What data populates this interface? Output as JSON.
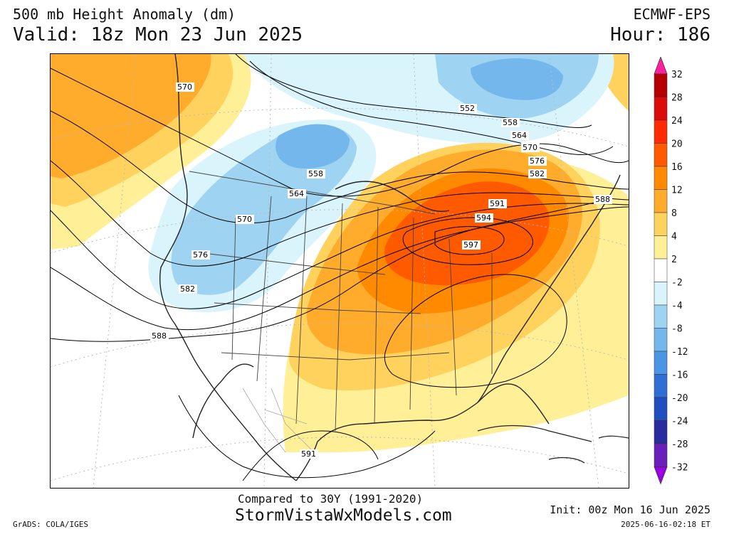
{
  "header": {
    "title_line1": "500 mb Height Anomaly (dm)",
    "title_line2": "Valid: 18z Mon 23 Jun 2025",
    "model": "ECMWF-EPS",
    "hour": "Hour: 186"
  },
  "footer": {
    "compared": "Compared to 30Y (1991-2020)",
    "site": "StormVistaWxModels.com",
    "init": "Init: 00z Mon 16 Jun 2025",
    "timestamp": "2025-06-16-02:18 ET",
    "software": "GrADS: COLA/IGES"
  },
  "colorbar": {
    "labels": [
      "32",
      "28",
      "24",
      "20",
      "16",
      "12",
      "8",
      "4",
      "2",
      "-2",
      "-4",
      "-8",
      "-12",
      "-16",
      "-20",
      "-24",
      "-28",
      "-32"
    ],
    "colors": [
      "#ff1f9e",
      "#b40000",
      "#dc0c0c",
      "#ff2a00",
      "#ff5a00",
      "#ff8a00",
      "#ffab2c",
      "#ffd25e",
      "#ffef96",
      "#ffffff",
      "#d9f4fb",
      "#9fd3f2",
      "#74b7ec",
      "#4a95e4",
      "#2f6fd5",
      "#1f4fbf",
      "#2b2ba0",
      "#6a1fb8",
      "#9900e6"
    ]
  },
  "contour_labels": [
    "570",
    "552",
    "558",
    "564",
    "570",
    "576",
    "582",
    "558",
    "564",
    "570",
    "576",
    "582",
    "588",
    "591",
    "594",
    "597",
    "588",
    "591"
  ],
  "colors": {
    "warm_center": "#ff5a00",
    "cold_center": "#4a95e4"
  }
}
